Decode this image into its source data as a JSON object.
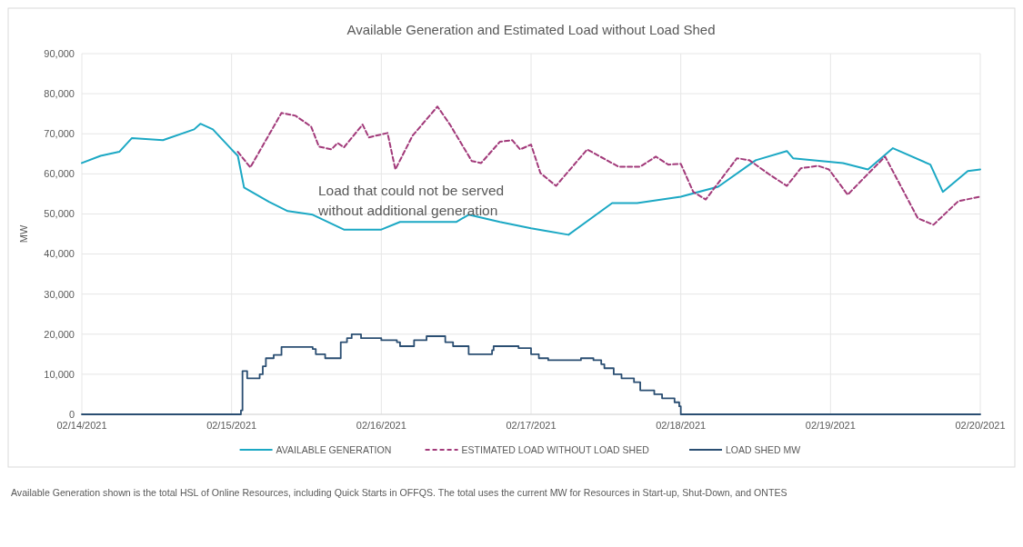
{
  "chart_data": {
    "type": "line",
    "title": "Available Generation and Estimated Load without Load Shed",
    "ylabel": "MW",
    "annotations": [
      "Load that could not be served without additional generation",
      "Available Generation shown is the total HSL of Online Resources, including Quick Starts in OFFQS. The total uses the current MW for Resources in Start-up, Shut-Down, and ONTES"
    ],
    "xlim": [
      "2021-02-14",
      "2021-02-20"
    ],
    "xticks": [
      {
        "value": "2021-02-14",
        "label": "02/14/2021"
      },
      {
        "value": "2021-02-15",
        "label": "02/15/2021"
      },
      {
        "value": "2021-02-16",
        "label": "02/16/2021"
      },
      {
        "value": "2021-02-17",
        "label": "02/17/2021"
      },
      {
        "value": "2021-02-18",
        "label": "02/18/2021"
      },
      {
        "value": "2021-02-19",
        "label": "02/19/2021"
      },
      {
        "value": "2021-02-20",
        "label": "02/20/2021"
      }
    ],
    "ylim": [
      0,
      90000
    ],
    "yticks": [
      0,
      {
        "value": 10000,
        "label": "10,000"
      },
      {
        "value": 20000,
        "label": "20,000"
      },
      {
        "value": 30000,
        "label": "30,000"
      },
      {
        "value": 40000,
        "label": "40,000"
      },
      {
        "value": 50000,
        "label": "50,000"
      },
      {
        "value": 60000,
        "label": "60,000"
      },
      {
        "value": 70000,
        "label": "70,000"
      },
      {
        "value": 80000,
        "label": "80,000"
      },
      {
        "value": 90000,
        "label": "90,000"
      }
    ],
    "grid": true,
    "legend": "bottom",
    "marker": "none",
    "series": [
      {
        "name": "AVAILABLE GENERATION",
        "color": "#1ba8c4",
        "line_style": "solid",
        "x": [
          "2021-02-14T00:00",
          "2021-02-14T03:00",
          "2021-02-14T06:00",
          "2021-02-14T08:00",
          "2021-02-14T13:00",
          "2021-02-14T18:00",
          "2021-02-14T19:00",
          "2021-02-14T21:00",
          "2021-02-15T00:00",
          "2021-02-15T01:00",
          "2021-02-15T02:00",
          "2021-02-15T06:00",
          "2021-02-15T09:00",
          "2021-02-15T13:00",
          "2021-02-15T18:00",
          "2021-02-16T00:00",
          "2021-02-16T03:00",
          "2021-02-16T12:00",
          "2021-02-16T14:00",
          "2021-02-16T19:00",
          "2021-02-17T00:00",
          "2021-02-17T06:00",
          "2021-02-17T13:00",
          "2021-02-17T17:00",
          "2021-02-18T00:00",
          "2021-02-18T06:00",
          "2021-02-18T12:00",
          "2021-02-18T17:00",
          "2021-02-18T18:00",
          "2021-02-19T02:00",
          "2021-02-19T06:00",
          "2021-02-19T10:00",
          "2021-02-19T16:00",
          "2021-02-19T18:00",
          "2021-02-19T22:00",
          "2021-02-20T00:00"
        ],
        "values": [
          62700,
          64500,
          65500,
          68900,
          68400,
          71100,
          72500,
          71100,
          66100,
          64500,
          56600,
          53000,
          50700,
          49800,
          46100,
          46100,
          48000,
          48000,
          49800,
          48000,
          46400,
          44800,
          52700,
          52700,
          54300,
          56800,
          63400,
          65700,
          63900,
          62700,
          61100,
          66400,
          62300,
          55500,
          60700,
          61100
        ]
      },
      {
        "name": "ESTIMATED LOAD WITHOUT LOAD SHED",
        "color": "#a23a7a",
        "line_style": "dashed",
        "x": [
          "2021-02-15T01:00",
          "2021-02-15T03:00",
          "2021-02-15T05:30",
          "2021-02-15T08:00",
          "2021-02-15T10:15",
          "2021-02-15T12:45",
          "2021-02-15T14:00",
          "2021-02-15T16:00",
          "2021-02-15T17:00",
          "2021-02-15T18:00",
          "2021-02-15T21:00",
          "2021-02-15T22:00",
          "2021-02-16T01:00",
          "2021-02-16T02:15",
          "2021-02-16T05:00",
          "2021-02-16T09:00",
          "2021-02-16T11:00",
          "2021-02-16T14:30",
          "2021-02-16T16:00",
          "2021-02-16T19:00",
          "2021-02-16T21:00",
          "2021-02-16T22:15",
          "2021-02-17T00:00",
          "2021-02-17T01:30",
          "2021-02-17T04:00",
          "2021-02-17T09:00",
          "2021-02-17T14:00",
          "2021-02-17T17:30",
          "2021-02-17T20:00",
          "2021-02-17T22:00",
          "2021-02-18T00:00",
          "2021-02-18T02:00",
          "2021-02-18T04:00",
          "2021-02-18T09:00",
          "2021-02-18T11:00",
          "2021-02-18T14:15",
          "2021-02-18T17:00",
          "2021-02-18T19:15",
          "2021-02-18T22:00",
          "2021-02-18T23:45",
          "2021-02-19T02:45",
          "2021-02-19T05:45",
          "2021-02-19T08:45",
          "2021-02-19T14:00",
          "2021-02-19T16:30",
          "2021-02-19T20:30",
          "2021-02-20T00:00"
        ],
        "values": [
          65500,
          61600,
          68400,
          75200,
          74500,
          71800,
          66800,
          66100,
          67700,
          66600,
          72300,
          69100,
          70200,
          61100,
          69500,
          76800,
          72300,
          63200,
          62700,
          68000,
          68400,
          66100,
          67300,
          60200,
          57000,
          66100,
          61800,
          61800,
          64300,
          62300,
          62500,
          55500,
          53600,
          63900,
          63400,
          59800,
          57000,
          61400,
          62000,
          61100,
          54800,
          59600,
          64300,
          48900,
          47300,
          53200,
          54300
        ]
      },
      {
        "name": "LOAD SHED MW",
        "color": "#2a4e72",
        "type": "step",
        "line_style": "solid",
        "x": [
          "2021-02-14T00:00",
          "2021-02-15T01:30",
          "2021-02-15T01:45",
          "2021-02-15T02:30",
          "2021-02-15T04:30",
          "2021-02-15T05:00",
          "2021-02-15T05:30",
          "2021-02-15T06:45",
          "2021-02-15T08:00",
          "2021-02-15T13:00",
          "2021-02-15T13:30",
          "2021-02-15T15:00",
          "2021-02-15T17:30",
          "2021-02-15T18:30",
          "2021-02-15T19:15",
          "2021-02-15T20:45",
          "2021-02-16T00:00",
          "2021-02-16T02:30",
          "2021-02-16T03:00",
          "2021-02-16T05:15",
          "2021-02-16T07:15",
          "2021-02-16T10:15",
          "2021-02-16T11:30",
          "2021-02-16T14:00",
          "2021-02-16T17:45",
          "2021-02-16T18:00",
          "2021-02-16T22:00",
          "2021-02-17T00:00",
          "2021-02-17T01:15",
          "2021-02-17T02:45",
          "2021-02-17T08:00",
          "2021-02-17T10:00",
          "2021-02-17T11:15",
          "2021-02-17T11:45",
          "2021-02-17T13:15",
          "2021-02-17T14:30",
          "2021-02-17T16:30",
          "2021-02-17T17:30",
          "2021-02-17T19:45",
          "2021-02-17T21:00",
          "2021-02-17T23:00",
          "2021-02-17T23:45",
          "2021-02-18T00:00",
          "2021-02-20T00:00"
        ],
        "values": [
          0,
          1000,
          10800,
          9000,
          10000,
          12000,
          14000,
          14800,
          16800,
          16300,
          15000,
          14000,
          18000,
          19000,
          20000,
          19000,
          18500,
          18000,
          17000,
          18500,
          19500,
          18000,
          17000,
          15000,
          16000,
          17000,
          16500,
          15000,
          14000,
          13500,
          14000,
          13500,
          12500,
          11500,
          10000,
          9000,
          8000,
          6000,
          5000,
          4000,
          3000,
          2000,
          0,
          0
        ]
      }
    ]
  }
}
